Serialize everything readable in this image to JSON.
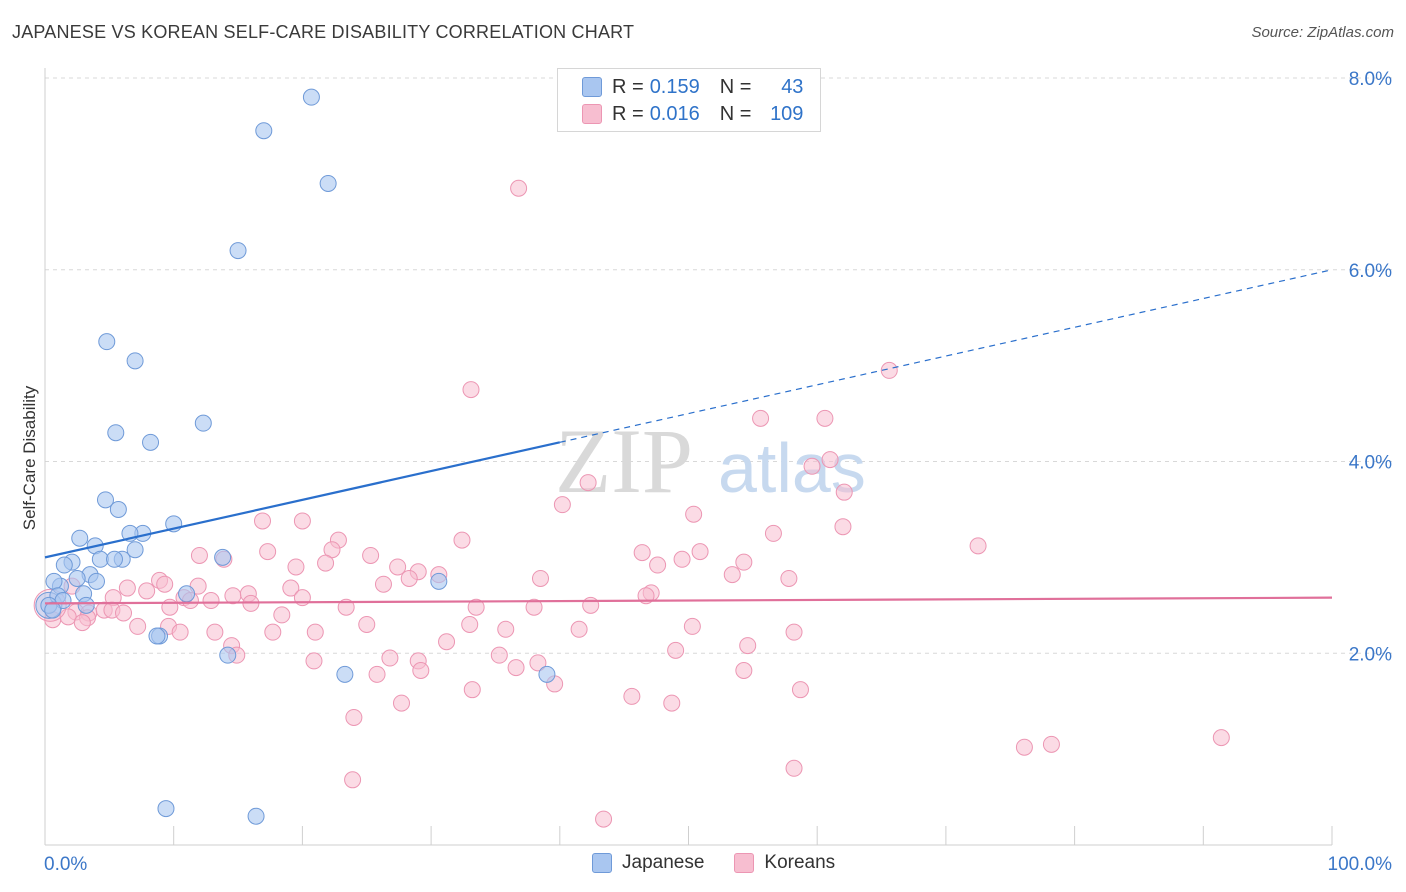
{
  "header": {
    "title": "JAPANESE VS KOREAN SELF-CARE DISABILITY CORRELATION CHART",
    "source": "Source: ZipAtlas.com"
  },
  "watermark": {
    "zip": "ZIP",
    "atlas": "atlas"
  },
  "legend": {
    "r_label": "R =",
    "n_label": "N =",
    "rows": [
      {
        "r": "0.159",
        "n": "43"
      },
      {
        "r": "0.016",
        "n": "109"
      }
    ]
  },
  "colors": {
    "japanese_fill": "#a9c6f0",
    "japanese_stroke": "#6f9ad8",
    "japanese_line": "#2a6fcc",
    "korean_fill": "#f7bed0",
    "korean_stroke": "#ec96b3",
    "korean_line": "#e0709a",
    "axis_label": "#3b77c8",
    "grid": "#d8d8d8"
  },
  "chart_data": {
    "type": "scatter",
    "title": "JAPANESE VS KOREAN SELF-CARE DISABILITY CORRELATION CHART",
    "ylabel": "Self-Care Disability",
    "xlabel": "",
    "xlim": [
      0,
      100
    ],
    "ylim": [
      0,
      8
    ],
    "x_tick_labels": [
      "0.0%",
      "100.0%"
    ],
    "y_ticks": [
      2,
      4,
      6,
      8
    ],
    "y_tick_labels": [
      "2.0%",
      "4.0%",
      "6.0%",
      "8.0%"
    ],
    "grid": true,
    "legend_position": "top-center",
    "series": [
      {
        "name": "Japanese",
        "r": 0.159,
        "n": 43,
        "trend": {
          "x0": 0,
          "y0": 3.0,
          "x_solid_end": 40,
          "y_solid_end": 4.2,
          "x1": 100,
          "y1": 6.0
        },
        "points": [
          [
            20.7,
            7.8
          ],
          [
            17.0,
            7.45
          ],
          [
            22.0,
            6.9
          ],
          [
            15.0,
            6.2
          ],
          [
            4.8,
            5.25
          ],
          [
            7.0,
            5.05
          ],
          [
            12.3,
            4.4
          ],
          [
            5.5,
            4.3
          ],
          [
            8.2,
            4.2
          ],
          [
            4.7,
            3.6
          ],
          [
            5.7,
            3.5
          ],
          [
            10.0,
            3.35
          ],
          [
            2.7,
            3.2
          ],
          [
            7.6,
            3.25
          ],
          [
            6.6,
            3.25
          ],
          [
            3.9,
            3.12
          ],
          [
            7.0,
            3.08
          ],
          [
            2.1,
            2.95
          ],
          [
            4.3,
            2.98
          ],
          [
            6.0,
            2.98
          ],
          [
            5.4,
            2.98
          ],
          [
            13.8,
            3.0
          ],
          [
            1.5,
            2.92
          ],
          [
            3.5,
            2.82
          ],
          [
            2.5,
            2.78
          ],
          [
            4.0,
            2.75
          ],
          [
            1.2,
            2.7
          ],
          [
            0.7,
            2.75
          ],
          [
            11.0,
            2.62
          ],
          [
            1.0,
            2.6
          ],
          [
            3.0,
            2.62
          ],
          [
            1.4,
            2.55
          ],
          [
            3.2,
            2.5
          ],
          [
            0.3,
            2.5
          ],
          [
            0.6,
            2.45
          ],
          [
            30.6,
            2.75
          ],
          [
            8.9,
            2.18
          ],
          [
            8.7,
            2.18
          ],
          [
            14.2,
            1.98
          ],
          [
            23.3,
            1.78
          ],
          [
            39.0,
            1.78
          ],
          [
            9.4,
            0.38
          ],
          [
            16.4,
            0.3
          ]
        ]
      },
      {
        "name": "Koreans",
        "r": 0.016,
        "n": 109,
        "trend": {
          "x0": 0,
          "y0": 2.52,
          "x1": 100,
          "y1": 2.58
        },
        "points": [
          [
            36.8,
            6.85
          ],
          [
            65.6,
            4.95
          ],
          [
            33.1,
            4.75
          ],
          [
            55.6,
            4.45
          ],
          [
            60.6,
            4.45
          ],
          [
            61.0,
            4.02
          ],
          [
            59.6,
            3.95
          ],
          [
            62.1,
            3.68
          ],
          [
            42.2,
            3.78
          ],
          [
            40.2,
            3.55
          ],
          [
            50.4,
            3.45
          ],
          [
            62.0,
            3.32
          ],
          [
            16.9,
            3.38
          ],
          [
            20.0,
            3.38
          ],
          [
            56.6,
            3.25
          ],
          [
            72.5,
            3.12
          ],
          [
            32.4,
            3.18
          ],
          [
            22.8,
            3.18
          ],
          [
            22.3,
            3.08
          ],
          [
            17.3,
            3.06
          ],
          [
            25.3,
            3.02
          ],
          [
            12.0,
            3.02
          ],
          [
            50.9,
            3.06
          ],
          [
            46.4,
            3.05
          ],
          [
            49.5,
            2.98
          ],
          [
            13.9,
            2.98
          ],
          [
            19.5,
            2.9
          ],
          [
            21.8,
            2.94
          ],
          [
            27.4,
            2.9
          ],
          [
            29.0,
            2.85
          ],
          [
            54.3,
            2.95
          ],
          [
            47.6,
            2.92
          ],
          [
            53.4,
            2.82
          ],
          [
            30.6,
            2.82
          ],
          [
            28.3,
            2.78
          ],
          [
            38.5,
            2.78
          ],
          [
            57.8,
            2.78
          ],
          [
            8.9,
            2.76
          ],
          [
            9.3,
            2.72
          ],
          [
            11.9,
            2.7
          ],
          [
            6.4,
            2.68
          ],
          [
            2.1,
            2.7
          ],
          [
            26.3,
            2.72
          ],
          [
            19.1,
            2.68
          ],
          [
            14.6,
            2.6
          ],
          [
            15.8,
            2.62
          ],
          [
            7.9,
            2.65
          ],
          [
            47.1,
            2.63
          ],
          [
            46.7,
            2.6
          ],
          [
            5.3,
            2.58
          ],
          [
            10.8,
            2.58
          ],
          [
            12.9,
            2.55
          ],
          [
            11.3,
            2.55
          ],
          [
            16.0,
            2.52
          ],
          [
            20.0,
            2.58
          ],
          [
            23.4,
            2.48
          ],
          [
            33.5,
            2.48
          ],
          [
            38.0,
            2.48
          ],
          [
            42.4,
            2.5
          ],
          [
            4.6,
            2.45
          ],
          [
            5.2,
            2.45
          ],
          [
            2.4,
            2.43
          ],
          [
            3.4,
            2.42
          ],
          [
            1.8,
            2.38
          ],
          [
            9.7,
            2.48
          ],
          [
            18.4,
            2.4
          ],
          [
            6.1,
            2.42
          ],
          [
            3.3,
            2.37
          ],
          [
            2.9,
            2.32
          ],
          [
            0.6,
            2.35
          ],
          [
            25.0,
            2.3
          ],
          [
            33.0,
            2.3
          ],
          [
            7.2,
            2.28
          ],
          [
            9.6,
            2.28
          ],
          [
            50.3,
            2.28
          ],
          [
            35.8,
            2.25
          ],
          [
            41.5,
            2.25
          ],
          [
            10.5,
            2.22
          ],
          [
            13.2,
            2.22
          ],
          [
            17.7,
            2.22
          ],
          [
            21.0,
            2.22
          ],
          [
            58.2,
            2.22
          ],
          [
            31.2,
            2.12
          ],
          [
            14.5,
            2.08
          ],
          [
            54.6,
            2.08
          ],
          [
            49.0,
            2.03
          ],
          [
            14.9,
            1.98
          ],
          [
            35.3,
            1.98
          ],
          [
            26.8,
            1.95
          ],
          [
            20.9,
            1.92
          ],
          [
            29.0,
            1.92
          ],
          [
            38.3,
            1.9
          ],
          [
            36.6,
            1.85
          ],
          [
            29.2,
            1.82
          ],
          [
            54.3,
            1.82
          ],
          [
            25.8,
            1.78
          ],
          [
            39.6,
            1.68
          ],
          [
            33.2,
            1.62
          ],
          [
            58.7,
            1.62
          ],
          [
            45.6,
            1.55
          ],
          [
            48.7,
            1.48
          ],
          [
            27.7,
            1.48
          ],
          [
            24.0,
            1.33
          ],
          [
            76.1,
            1.02
          ],
          [
            78.2,
            1.05
          ],
          [
            91.4,
            1.12
          ],
          [
            58.2,
            0.8
          ],
          [
            23.9,
            0.68
          ],
          [
            43.4,
            0.27
          ]
        ]
      }
    ]
  }
}
